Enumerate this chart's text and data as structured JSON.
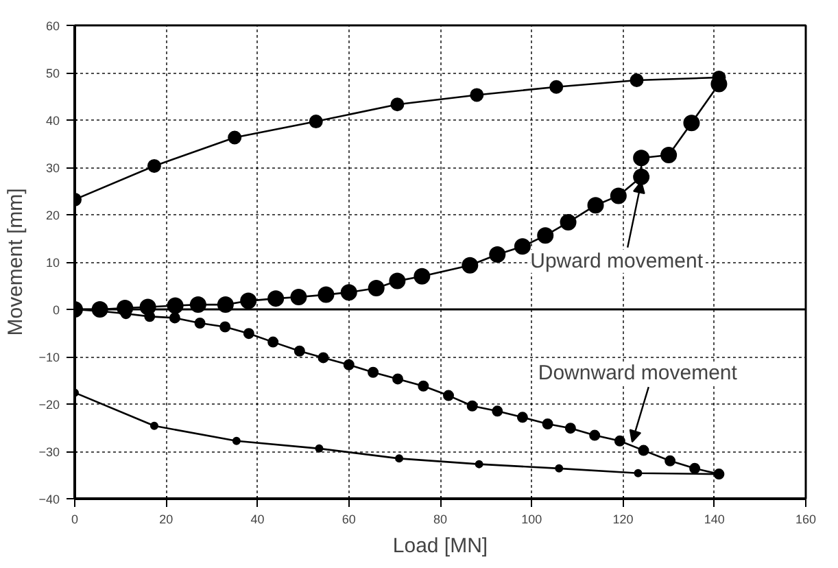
{
  "chart_data": {
    "type": "line",
    "xlabel": "Load [MN]",
    "ylabel": "Movement [mm]",
    "xlim": [
      0,
      160
    ],
    "ylim": [
      -40,
      60
    ],
    "xticks": [
      0,
      20,
      40,
      60,
      80,
      100,
      120,
      140,
      160
    ],
    "yticks": [
      -40,
      -30,
      -20,
      -10,
      0,
      10,
      20,
      30,
      40,
      50,
      60
    ],
    "grid": true,
    "marker": "circle",
    "line_style": "solid",
    "ref_lines": [
      {
        "axis": "y",
        "value": 0,
        "color": "#000000"
      }
    ],
    "series": [
      {
        "color": "#000000",
        "x": [
          0,
          5.5,
          11,
          16,
          22,
          27,
          33,
          38,
          44,
          49,
          55,
          60,
          66,
          70.6,
          76,
          86.5,
          92.5,
          98,
          103,
          108,
          114,
          119,
          124,
          124,
          130,
          135,
          141
        ],
        "values": [
          0,
          0,
          0.3,
          0.5,
          0.8,
          1,
          1,
          1.8,
          2.3,
          2.6,
          3.1,
          3.6,
          4.5,
          6,
          7,
          9.3,
          11.6,
          13.3,
          15.6,
          18.4,
          22,
          24,
          28,
          32,
          32.6,
          39.4,
          47.6
        ]
      },
      {
        "color": "#000000",
        "x": [
          141,
          123,
          105.4,
          88,
          70.6,
          52.8,
          35,
          17.4,
          0
        ],
        "values": [
          49,
          48.4,
          47,
          45.3,
          43.3,
          39.7,
          36.3,
          30.3,
          23.2
        ]
      },
      {
        "color": "#000000",
        "x": [
          0,
          5.9,
          11.2,
          16.4,
          21.9,
          27.4,
          32.9,
          38.1,
          43.4,
          49.2,
          54.4,
          60,
          65.3,
          70.7,
          76.3,
          81.8,
          87,
          92.5,
          98,
          103.5,
          108.5,
          113.8,
          119.3,
          124.5,
          130.3,
          135.7,
          141
        ],
        "values": [
          0,
          -0.4,
          -0.9,
          -1.5,
          -1.8,
          -2.9,
          -3.7,
          -5.1,
          -6.9,
          -8.8,
          -10.2,
          -11.7,
          -13.3,
          -14.7,
          -16.2,
          -18.2,
          -20.4,
          -21.5,
          -22.8,
          -24.2,
          -25.1,
          -26.6,
          -27.8,
          -29.8,
          -32,
          -33.6,
          -34.8
        ]
      },
      {
        "color": "#000000",
        "x": [
          141,
          123.3,
          106,
          88.5,
          71,
          53.5,
          35.4,
          17.4,
          0
        ],
        "values": [
          -34.8,
          -34.6,
          -33.6,
          -32.7,
          -31.5,
          -29.4,
          -27.8,
          -24.6,
          -17.6
        ]
      }
    ],
    "annotations": [
      {
        "text": "Upward movement",
        "x": 124,
        "y": 27
      },
      {
        "text": "Downward movement",
        "x": 122,
        "y": -28
      }
    ]
  }
}
